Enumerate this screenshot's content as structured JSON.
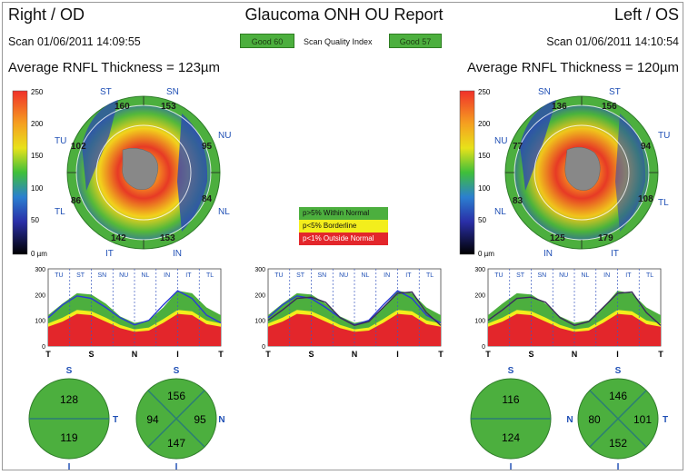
{
  "header": {
    "right_eye": "Right / OD",
    "title": "Glaucoma ONH OU Report",
    "left_eye": "Left / OS"
  },
  "scan": {
    "od": "Scan 01/06/2011 14:09:55",
    "os": "Scan 01/06/2011 14:10:54",
    "quality_label": "Scan Quality Index",
    "od_quality": "Good 60",
    "os_quality": "Good 57"
  },
  "avg": {
    "od": "Average RNFL Thickness = 123µm",
    "os": "Average RNFL Thickness = 120µm"
  },
  "colorbar": {
    "ticks": [
      "250",
      "200",
      "150",
      "100",
      "50",
      "0 µm"
    ]
  },
  "legend": {
    "within": "p>5% Within Normal",
    "borderline": "p<5% Borderline",
    "outside": "p<1% Outside Normal"
  },
  "colors": {
    "within": "#4caf3e",
    "borderline": "#f3ee1c",
    "outside": "#e3262b",
    "od_line": "#2a3bd6",
    "os_line": "#3b2c5c"
  },
  "od_map": {
    "sector_labels": {
      "ST": "ST",
      "SN": "SN",
      "NU": "NU",
      "NL": "NL",
      "IN": "IN",
      "IT": "IT",
      "TL": "TL",
      "TU": "TU"
    },
    "values": {
      "ST": "160",
      "SN": "153",
      "NU": "95",
      "NL": "84",
      "IN": "153",
      "IT": "142",
      "TL": "86",
      "TU": "102"
    }
  },
  "os_map": {
    "sector_labels": {
      "SN": "SN",
      "ST": "ST",
      "TU": "TU",
      "TL": "TL",
      "IT": "IT",
      "IN": "IN",
      "NL": "NL",
      "NU": "NU"
    },
    "values": {
      "SN": "136",
      "ST": "156",
      "TU": "94",
      "TL": "108",
      "IT": "179",
      "IN": "125",
      "NL": "83",
      "NU": "77"
    }
  },
  "tsnit": {
    "y_ticks": [
      "300",
      "200",
      "100",
      "0"
    ],
    "sectors": [
      "TU",
      "ST",
      "SN",
      "NU",
      "NL",
      "IN",
      "IT",
      "TL"
    ],
    "x_labels": [
      "T",
      "S",
      "N",
      "I",
      "T"
    ]
  },
  "chart_data": [
    {
      "type": "line",
      "name": "od-tsnit",
      "x": [
        0,
        30,
        60,
        90,
        120,
        150,
        180,
        210,
        240,
        270,
        300,
        330,
        360
      ],
      "series": [
        {
          "values": [
            110,
            160,
            195,
            185,
            150,
            110,
            82,
            100,
            160,
            215,
            185,
            120,
            90
          ]
        }
      ],
      "ylim": [
        0,
        300
      ]
    },
    {
      "type": "line",
      "name": "ou-tsnit",
      "x": [
        0,
        30,
        60,
        90,
        120,
        150,
        180,
        210,
        240,
        270,
        300,
        330,
        360
      ],
      "series": [
        {
          "values": [
            110,
            160,
            195,
            185,
            150,
            110,
            82,
            100,
            160,
            215,
            185,
            120,
            90
          ]
        },
        {
          "values": [
            100,
            140,
            185,
            190,
            170,
            110,
            80,
            95,
            150,
            205,
            210,
            130,
            80
          ]
        }
      ],
      "ylim": [
        0,
        300
      ]
    },
    {
      "type": "line",
      "name": "os-tsnit",
      "x": [
        0,
        30,
        60,
        90,
        120,
        150,
        180,
        210,
        240,
        270,
        300,
        330,
        360
      ],
      "series": [
        {
          "values": [
            100,
            140,
            185,
            190,
            170,
            110,
            80,
            95,
            150,
            205,
            210,
            130,
            80
          ]
        }
      ],
      "ylim": [
        0,
        300
      ]
    }
  ],
  "quadrants": {
    "od_hemi": {
      "s_label": "S",
      "i_label": "I",
      "t_label": "T",
      "superior": "128",
      "inferior": "119"
    },
    "od_quad": {
      "s_label": "S",
      "i_label": "I",
      "n_label": "N",
      "s": "156",
      "t": "94",
      "n": "95",
      "i": "147"
    },
    "os_hemi": {
      "s_label": "S",
      "i_label": "I",
      "n_label": "N",
      "superior": "116",
      "inferior": "124"
    },
    "os_quad": {
      "s_label": "S",
      "i_label": "I",
      "t_label": "T",
      "s": "146",
      "n": "80",
      "t": "101",
      "i": "152"
    }
  }
}
